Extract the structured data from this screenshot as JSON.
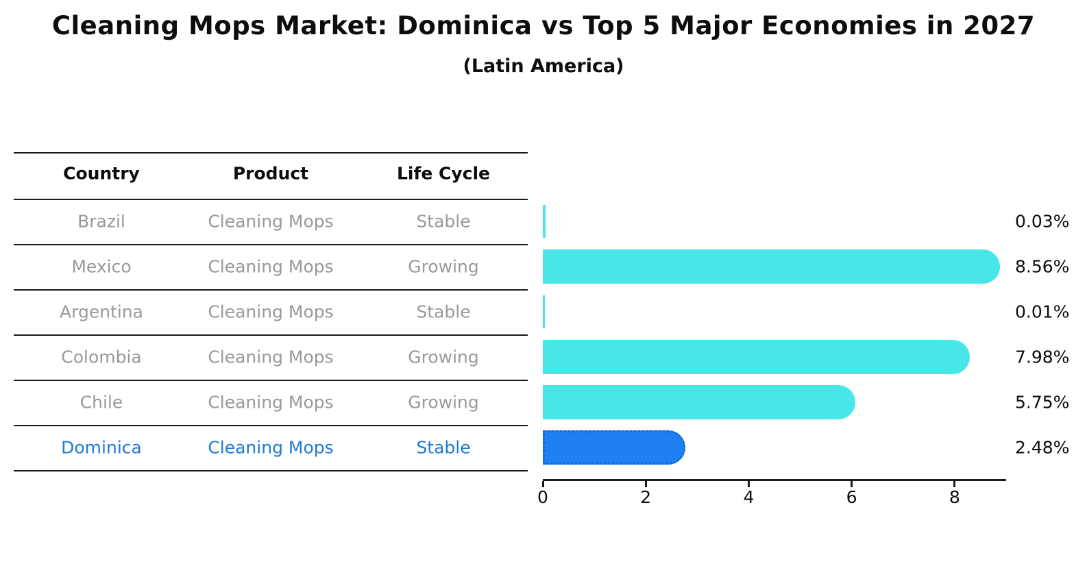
{
  "title": "Cleaning Mops Market: Dominica vs Top 5 Major Economies in 2027",
  "subtitle": "(Latin America)",
  "colors": {
    "bar": "#48E6E8",
    "highlight_bar": "#1E80F2",
    "highlight_bar_border": "#1266DD",
    "row_text": "#999999",
    "highlight_text": "#1E7AD4",
    "header_text": "#0D0D0D",
    "axis": "#1A1A1A"
  },
  "table": {
    "headers": [
      "Country",
      "Product",
      "Life Cycle"
    ],
    "rows": [
      {
        "country": "Brazil",
        "product": "Cleaning Mops",
        "life_cycle": "Stable",
        "highlighted": false
      },
      {
        "country": "Mexico",
        "product": "Cleaning Mops",
        "life_cycle": "Growing",
        "highlighted": false
      },
      {
        "country": "Argentina",
        "product": "Cleaning Mops",
        "life_cycle": "Stable",
        "highlighted": false
      },
      {
        "country": "Colombia",
        "product": "Cleaning Mops",
        "life_cycle": "Growing",
        "highlighted": false
      },
      {
        "country": "Chile",
        "product": "Cleaning Mops",
        "life_cycle": "Growing",
        "highlighted": false
      },
      {
        "country": "Dominica",
        "product": "Cleaning Mops",
        "life_cycle": "Stable",
        "highlighted": true
      }
    ]
  },
  "chart_data": {
    "type": "bar",
    "orientation": "horizontal",
    "title": "Cleaning Mops Market: Dominica vs Top 5 Major Economies in 2027",
    "subtitle": "(Latin America)",
    "categories": [
      "Brazil",
      "Mexico",
      "Argentina",
      "Colombia",
      "Chile",
      "Dominica"
    ],
    "values": [
      0.03,
      8.56,
      0.01,
      7.98,
      5.75,
      2.48
    ],
    "value_labels": [
      "0.03%",
      "8.56%",
      "0.01%",
      "7.98%",
      "5.75%",
      "2.48%"
    ],
    "highlight_category": "Dominica",
    "xlabel": "",
    "ylabel": "",
    "xlim": [
      0,
      9
    ],
    "xticks": [
      0,
      2,
      4,
      6,
      8
    ],
    "xtick_labels": [
      "0",
      "2",
      "4",
      "6",
      "8"
    ],
    "grid": false,
    "legend": false
  }
}
